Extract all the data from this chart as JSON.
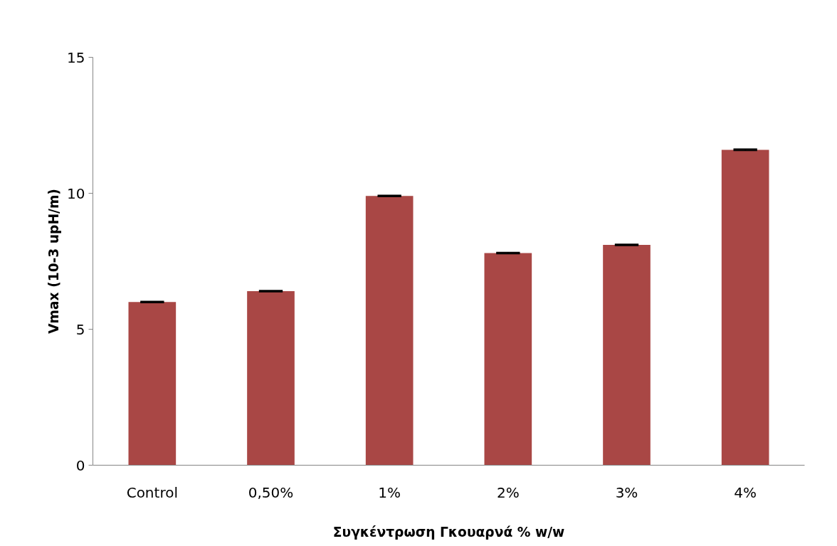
{
  "chart_data": {
    "type": "bar",
    "xlabel": "Συγκέντρωση Γκουαρνά % w/w",
    "ylabel": "Vmax (10-3 upH/m)",
    "categories": [
      "Control",
      "0,50%",
      "1%",
      "2%",
      "3%",
      "4%"
    ],
    "values": [
      6.0,
      6.4,
      9.9,
      7.8,
      8.1,
      11.6
    ],
    "errors": [
      0.02,
      0.02,
      0.02,
      0.02,
      0.02,
      0.02
    ],
    "color": "#a94745",
    "ylim": [
      0,
      15
    ],
    "yticks": [
      0,
      5,
      10,
      15
    ],
    "grid": false
  }
}
